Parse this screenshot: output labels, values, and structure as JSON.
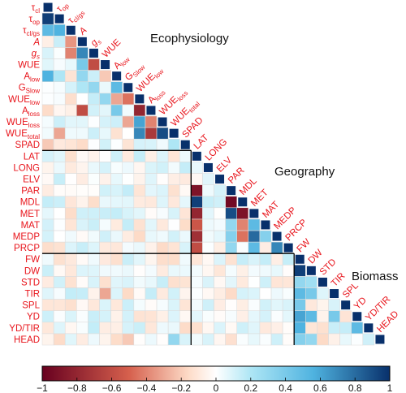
{
  "chart_data": {
    "type": "heatmap",
    "variables": [
      "τcl",
      "τop",
      "τcl/gs",
      "A",
      "gs",
      "WUE",
      "Alow",
      "GSlow",
      "WUElow",
      "Aloss",
      "WUEloss",
      "WUEtotal",
      "SPAD",
      "LAT",
      "LONG",
      "ELV",
      "PAR",
      "MDL",
      "MET",
      "MAT",
      "MEDP",
      "PRCP",
      "FW",
      "DW",
      "STD",
      "TIR",
      "SPL",
      "YD",
      "YD/TIR",
      "HEAD"
    ],
    "groups": [
      {
        "name": "Ecophysiology",
        "start": 0,
        "end": 12
      },
      {
        "name": "Geography",
        "start": 13,
        "end": 21
      },
      {
        "name": "Biomass",
        "start": 22,
        "end": 29
      }
    ],
    "colorbar": {
      "min": -1,
      "max": 1,
      "ticks": [
        "−1",
        "−0.8",
        "−0.6",
        "−0.4",
        "−0.2",
        "0",
        "0.2",
        "0.4",
        "0.6",
        "0.8",
        "1"
      ],
      "colors": [
        "#67001f",
        "#d6604d",
        "#fddbc7",
        "#ffffff",
        "#aee6f5",
        "#4fb3e0",
        "#08306b"
      ]
    },
    "highlights": [
      [
        1,
        0,
        0.95
      ],
      [
        2,
        0,
        0.5
      ],
      [
        2,
        1,
        0.55
      ],
      [
        3,
        2,
        -0.35
      ],
      [
        4,
        2,
        -0.4
      ],
      [
        4,
        3,
        0.7
      ],
      [
        5,
        3,
        0.4
      ],
      [
        5,
        4,
        -0.6
      ],
      [
        6,
        0,
        0.55
      ],
      [
        6,
        1,
        0.2
      ],
      [
        6,
        3,
        0.3
      ],
      [
        6,
        5,
        -0.2
      ],
      [
        7,
        3,
        0.2
      ],
      [
        7,
        4,
        0.3
      ],
      [
        7,
        6,
        0.5
      ],
      [
        8,
        5,
        0.3
      ],
      [
        8,
        6,
        -0.3
      ],
      [
        8,
        7,
        -0.45
      ],
      [
        9,
        3,
        -0.6
      ],
      [
        9,
        6,
        0.4
      ],
      [
        9,
        8,
        -0.8
      ],
      [
        10,
        7,
        -0.3
      ],
      [
        10,
        8,
        0.6
      ],
      [
        10,
        9,
        -0.4
      ],
      [
        11,
        1,
        -0.3
      ],
      [
        11,
        8,
        0.7
      ],
      [
        11,
        9,
        -0.7
      ],
      [
        11,
        10,
        0.9
      ],
      [
        12,
        0,
        -0.2
      ],
      [
        12,
        11,
        0.2
      ],
      [
        16,
        13,
        -0.9
      ],
      [
        17,
        13,
        0.95
      ],
      [
        17,
        16,
        -0.95
      ],
      [
        18,
        13,
        -0.8
      ],
      [
        18,
        16,
        0.9
      ],
      [
        18,
        17,
        -0.9
      ],
      [
        19,
        13,
        -0.55
      ],
      [
        19,
        16,
        0.3
      ],
      [
        19,
        17,
        -0.4
      ],
      [
        19,
        18,
        0.5
      ],
      [
        20,
        13,
        -0.75
      ],
      [
        20,
        16,
        0.35
      ],
      [
        20,
        17,
        -0.45
      ],
      [
        20,
        18,
        0.8
      ],
      [
        20,
        19,
        0.35
      ],
      [
        21,
        13,
        -0.6
      ],
      [
        21,
        16,
        0.3
      ],
      [
        21,
        18,
        0.5
      ],
      [
        21,
        20,
        0.7
      ],
      [
        23,
        22,
        0.95
      ],
      [
        24,
        22,
        0.3
      ],
      [
        24,
        23,
        0.25
      ],
      [
        25,
        5,
        -0.3
      ],
      [
        25,
        22,
        0.5
      ],
      [
        25,
        23,
        0.4
      ],
      [
        26,
        22,
        0.4
      ],
      [
        27,
        22,
        0.6
      ],
      [
        27,
        23,
        0.5
      ],
      [
        27,
        25,
        0.4
      ],
      [
        28,
        22,
        0.55
      ],
      [
        28,
        27,
        0.5
      ],
      [
        29,
        7,
        -0.2
      ],
      [
        29,
        11,
        0.3
      ],
      [
        29,
        22,
        0.35
      ],
      [
        29,
        23,
        0.3
      ]
    ]
  }
}
